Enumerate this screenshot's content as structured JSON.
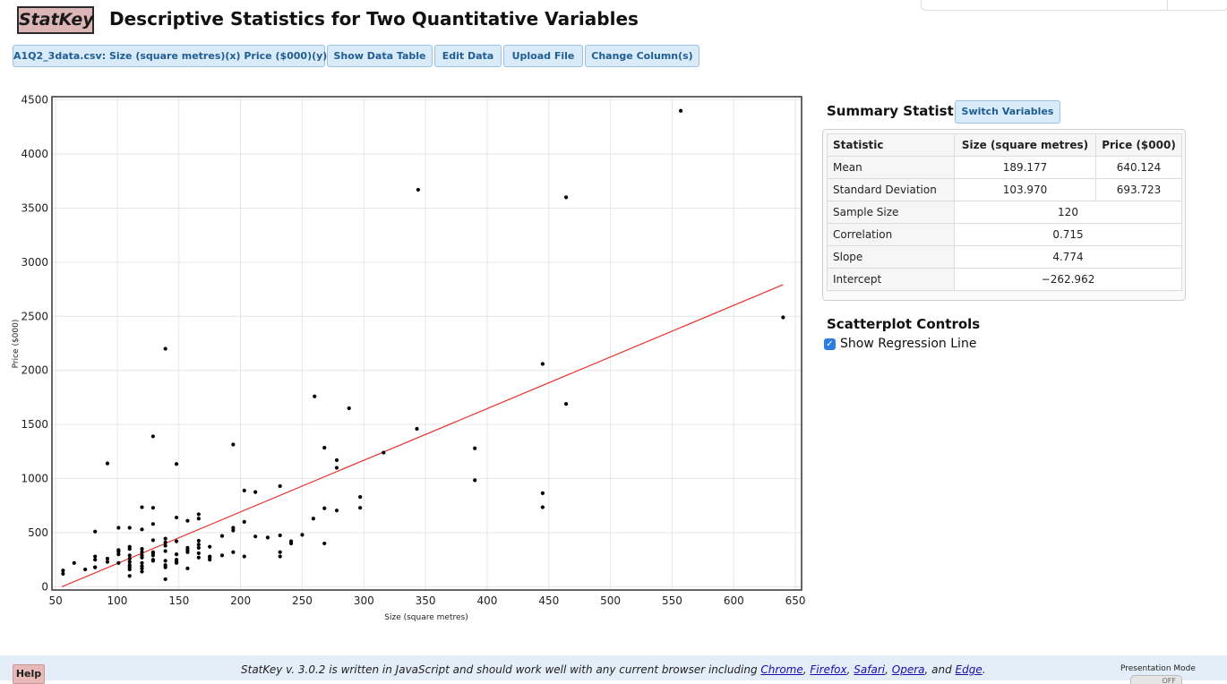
{
  "app": {
    "logo": "StatKey",
    "title": "Descriptive Statistics for Two Quantitative Variables"
  },
  "toolbar": {
    "dataset_label": "A1Q2_3data.csv: Size (square metres)(x) Price ($000)(y)",
    "show_table_label": "Show Data Table",
    "edit_data_label": "Edit Data",
    "upload_label": "Upload File",
    "change_columns_label": "Change Column(s)"
  },
  "colors": {
    "accent": "#1f5d93",
    "button_bg": "#d9eaf8",
    "regression": "#e8312c",
    "logo_bg": "#dcb6b6"
  },
  "chart_data": {
    "type": "scatter",
    "xlabel": "Size (square metres)",
    "ylabel": "Price ($000)",
    "xlim": [
      47,
      655
    ],
    "ylim": [
      -30,
      4530
    ],
    "xticks": [
      50,
      100,
      150,
      200,
      250,
      300,
      350,
      400,
      450,
      500,
      550,
      600,
      650
    ],
    "yticks": [
      0,
      500,
      1000,
      1500,
      2000,
      2500,
      3000,
      3500,
      4000,
      4500
    ],
    "grid": true,
    "regression_line": {
      "slope": 4.774,
      "intercept": -262.962,
      "x_range": [
        55,
        640
      ]
    },
    "points": [
      [
        557,
        4400
      ],
      [
        344,
        3670
      ],
      [
        464,
        3600
      ],
      [
        640,
        2490
      ],
      [
        139,
        2200
      ],
      [
        445,
        2060
      ],
      [
        260,
        1760
      ],
      [
        464,
        1690
      ],
      [
        288,
        1650
      ],
      [
        129,
        1390
      ],
      [
        343,
        1460
      ],
      [
        390,
        1280
      ],
      [
        194,
        1315
      ],
      [
        268,
        1285
      ],
      [
        316,
        1240
      ],
      [
        278,
        1170
      ],
      [
        278,
        1100
      ],
      [
        92,
        1140
      ],
      [
        148,
        1135
      ],
      [
        390,
        985
      ],
      [
        445,
        865
      ],
      [
        445,
        735
      ],
      [
        297,
        830
      ],
      [
        232,
        930
      ],
      [
        203,
        890
      ],
      [
        212,
        875
      ],
      [
        297,
        730
      ],
      [
        268,
        725
      ],
      [
        278,
        705
      ],
      [
        120,
        735
      ],
      [
        129,
        730
      ],
      [
        166,
        670
      ],
      [
        166,
        630
      ],
      [
        148,
        640
      ],
      [
        157,
        610
      ],
      [
        203,
        600
      ],
      [
        259,
        630
      ],
      [
        129,
        580
      ],
      [
        101,
        545
      ],
      [
        110,
        545
      ],
      [
        120,
        530
      ],
      [
        194,
        545
      ],
      [
        194,
        520
      ],
      [
        185,
        470
      ],
      [
        212,
        465
      ],
      [
        222,
        455
      ],
      [
        232,
        475
      ],
      [
        250,
        480
      ],
      [
        241,
        420
      ],
      [
        241,
        400
      ],
      [
        268,
        400
      ],
      [
        82,
        510
      ],
      [
        139,
        445
      ],
      [
        139,
        410
      ],
      [
        129,
        430
      ],
      [
        148,
        420
      ],
      [
        166,
        425
      ],
      [
        166,
        390
      ],
      [
        175,
        370
      ],
      [
        110,
        370
      ],
      [
        110,
        350
      ],
      [
        101,
        340
      ],
      [
        101,
        325
      ],
      [
        120,
        350
      ],
      [
        129,
        310
      ],
      [
        129,
        290
      ],
      [
        148,
        300
      ],
      [
        157,
        340
      ],
      [
        157,
        320
      ],
      [
        166,
        310
      ],
      [
        175,
        280
      ],
      [
        185,
        290
      ],
      [
        194,
        320
      ],
      [
        203,
        280
      ],
      [
        232,
        280
      ],
      [
        232,
        320
      ],
      [
        139,
        380
      ],
      [
        139,
        330
      ],
      [
        120,
        290
      ],
      [
        120,
        270
      ],
      [
        110,
        260
      ],
      [
        110,
        230
      ],
      [
        92,
        260
      ],
      [
        92,
        230
      ],
      [
        82,
        280
      ],
      [
        82,
        250
      ],
      [
        65,
        220
      ],
      [
        74,
        160
      ],
      [
        82,
        180
      ],
      [
        101,
        220
      ],
      [
        110,
        200
      ],
      [
        110,
        180
      ],
      [
        110,
        160
      ],
      [
        120,
        220
      ],
      [
        120,
        190
      ],
      [
        120,
        170
      ],
      [
        120,
        140
      ],
      [
        129,
        240
      ],
      [
        139,
        240
      ],
      [
        139,
        200
      ],
      [
        139,
        180
      ],
      [
        148,
        250
      ],
      [
        148,
        220
      ],
      [
        157,
        170
      ],
      [
        175,
        250
      ],
      [
        175,
        270
      ],
      [
        166,
        270
      ],
      [
        56,
        150
      ],
      [
        56,
        120
      ],
      [
        110,
        100
      ],
      [
        139,
        70
      ],
      [
        129,
        320
      ],
      [
        110,
        290
      ],
      [
        120,
        320
      ],
      [
        101,
        300
      ],
      [
        82,
        180
      ],
      [
        148,
        230
      ],
      [
        157,
        360
      ],
      [
        129,
        250
      ],
      [
        166,
        360
      ]
    ]
  },
  "summary": {
    "title": "Summary Statistics",
    "switch_label": "Switch Variables",
    "headers": [
      "Statistic",
      "Size (square metres)",
      "Price ($000)"
    ],
    "mean": {
      "label": "Mean",
      "x": "189.177",
      "y": "640.124"
    },
    "sd": {
      "label": "Standard Deviation",
      "x": "103.970",
      "y": "693.723"
    },
    "n": {
      "label": "Sample Size",
      "value": "120"
    },
    "correlation": {
      "label": "Correlation",
      "value": "0.715"
    },
    "slope": {
      "label": "Slope",
      "value": "4.774"
    },
    "intercept": {
      "label": "Intercept",
      "value": "−262.962"
    }
  },
  "controls": {
    "title": "Scatterplot Controls",
    "show_regression_label": "Show Regression Line",
    "show_regression": true
  },
  "footer": {
    "help_label": "Help",
    "text_prefix": "StatKey v. 3.0.2 is written in JavaScript and should work well with any current browser including ",
    "browsers": [
      "Chrome",
      "Firefox",
      "Safari",
      "Opera"
    ],
    "sep": ", ",
    "and_text": ", and ",
    "last_browser": "Edge",
    "end": ".",
    "presentation_label": "Presentation Mode",
    "toggle_state": "OFF"
  }
}
